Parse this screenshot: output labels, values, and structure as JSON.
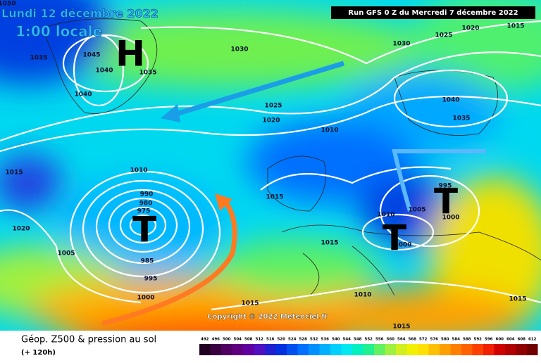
{
  "header": {
    "date": "Lundi 12 décembre 2022",
    "time": "1:00 locale",
    "run": "Run GFS 0 Z du Mercredi 7 décembre 2022"
  },
  "map": {
    "systems": [
      "H",
      "T",
      "T",
      "T"
    ],
    "pressure_labels": [
      "1050",
      "1035",
      "1045",
      "1040",
      "1035",
      "1040",
      "1030",
      "1030",
      "1025",
      "1020",
      "1015",
      "1025",
      "1020",
      "1010",
      "1040",
      "1035",
      "1015",
      "1010",
      "1020",
      "1005",
      "990",
      "980",
      "975",
      "985",
      "995",
      "1000",
      "1015",
      "1015",
      "1010",
      "1005",
      "995",
      "1000",
      "1000",
      "1010",
      "1015",
      "1015",
      "1015"
    ],
    "copyright": "Copyright © 2022 Meteociel.fr"
  },
  "footer": {
    "title": "Géop. Z500 & pression au sol",
    "subtitle": "(+ 120h)"
  },
  "legend": {
    "values": [
      492,
      496,
      500,
      504,
      508,
      512,
      516,
      520,
      524,
      528,
      532,
      536,
      540,
      544,
      548,
      552,
      556,
      560,
      564,
      568,
      572,
      576,
      580,
      584,
      588,
      592,
      596,
      600,
      604,
      608,
      612
    ],
    "colors": [
      "#200020",
      "#3a0040",
      "#500060",
      "#600080",
      "#6000a0",
      "#5010c0",
      "#2020d0",
      "#0030e0",
      "#0050f0",
      "#0070ff",
      "#0090ff",
      "#00b0ff",
      "#00d0ff",
      "#00e8f0",
      "#00f0c0",
      "#20f090",
      "#60f060",
      "#a0f040",
      "#d0f020",
      "#f0f000",
      "#ffe000",
      "#ffc000",
      "#ffa000",
      "#ff8000",
      "#ff6000",
      "#ff4000",
      "#f02000",
      "#d00000",
      "#b00000",
      "#900000",
      "#700000"
    ]
  }
}
